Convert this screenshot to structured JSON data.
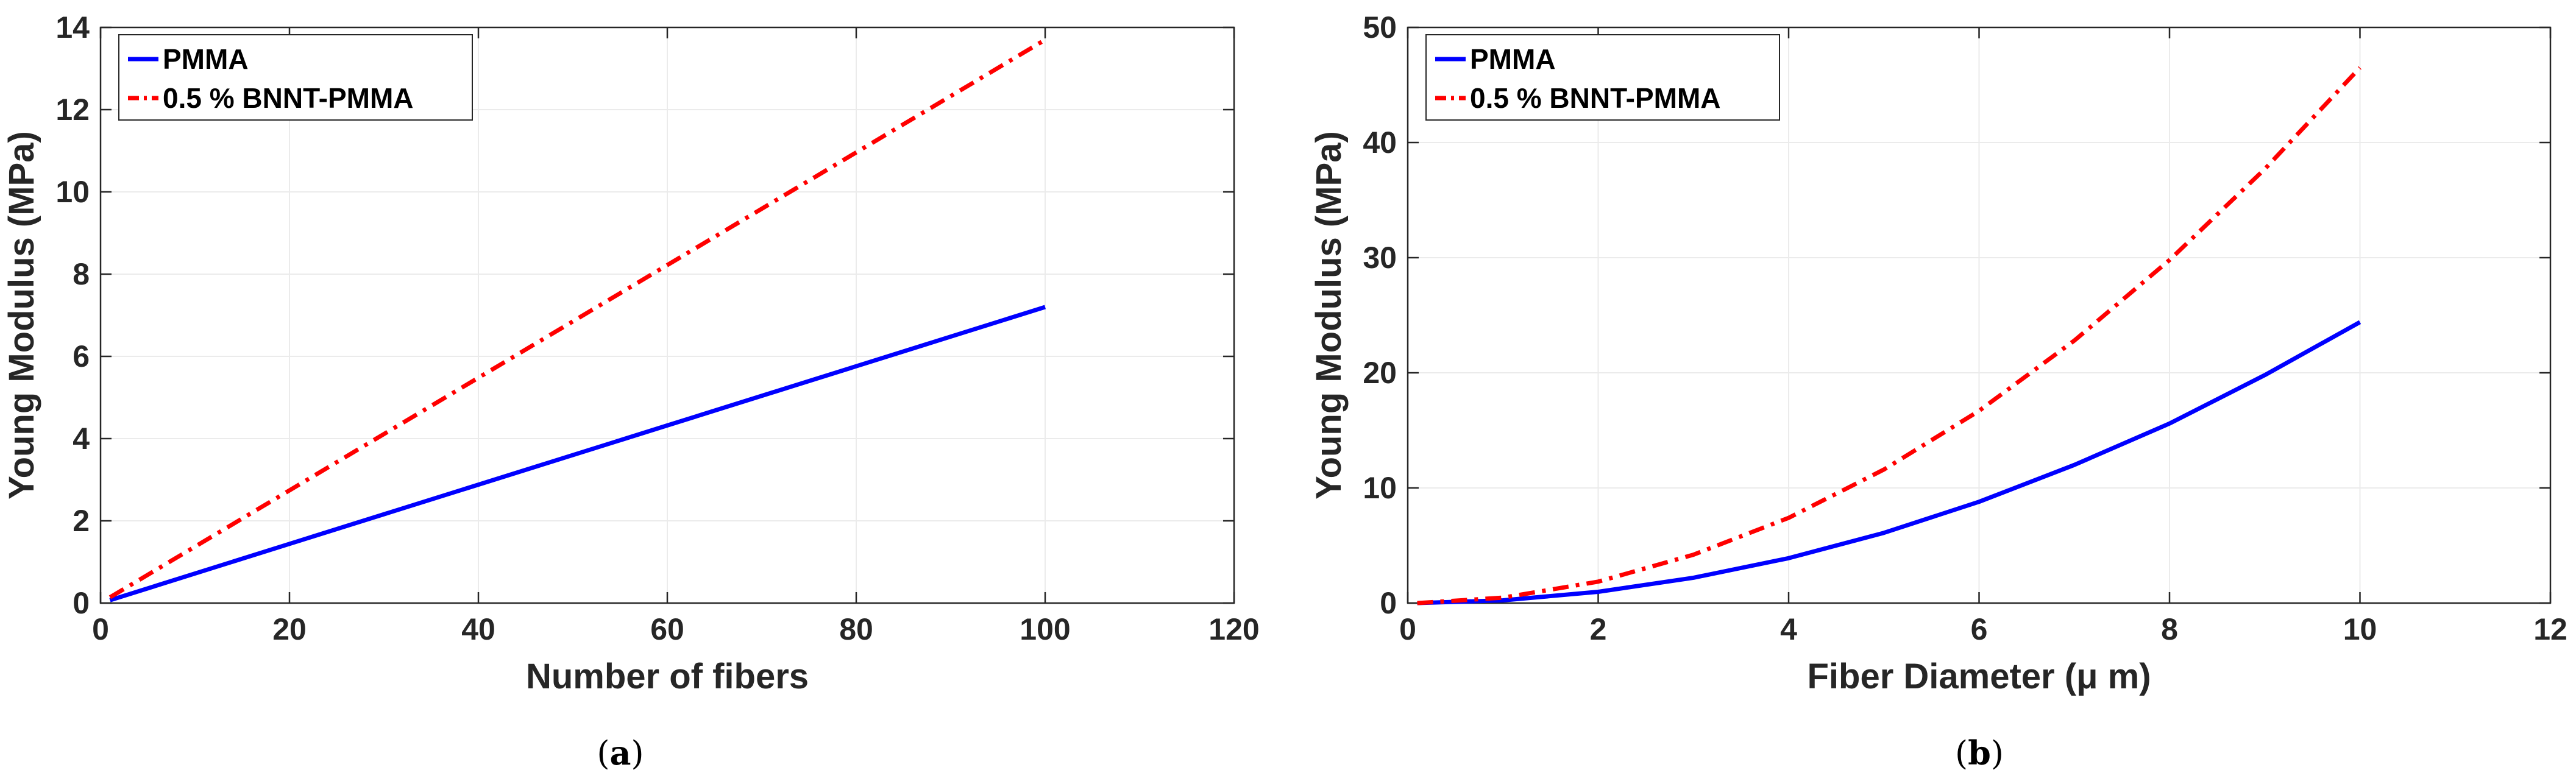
{
  "chart_data": [
    {
      "type": "line",
      "caption": "a",
      "xlabel": "Number of fibers",
      "ylabel": "Young Modulus (MPa)",
      "xlim": [
        0,
        120
      ],
      "ylim": [
        0,
        14
      ],
      "xticks": [
        0,
        20,
        40,
        60,
        80,
        100,
        120
      ],
      "yticks": [
        0,
        2,
        4,
        6,
        8,
        10,
        12,
        14
      ],
      "grid": true,
      "legend_position": "top-left",
      "series": [
        {
          "name": "PMMA",
          "color": "#0000ff",
          "style": "solid",
          "x": [
            1,
            20,
            40,
            60,
            80,
            100
          ],
          "y": [
            0.07,
            1.44,
            2.88,
            4.32,
            5.76,
            7.2
          ]
        },
        {
          "name": "0.5 % BNNT-PMMA",
          "color": "#ff0000",
          "style": "dashdot",
          "x": [
            1,
            20,
            40,
            60,
            80,
            100
          ],
          "y": [
            0.14,
            2.74,
            5.48,
            8.22,
            10.96,
            13.7
          ]
        }
      ]
    },
    {
      "type": "line",
      "caption": "b",
      "xlabel": "Fiber Diameter (μ m)",
      "ylabel": "Young Modulus (MPa)",
      "xlim": [
        0,
        12
      ],
      "ylim": [
        0,
        50
      ],
      "xticks": [
        0,
        2,
        4,
        6,
        8,
        10,
        12
      ],
      "yticks": [
        0,
        10,
        20,
        30,
        40,
        50
      ],
      "grid": true,
      "legend_position": "top-left",
      "series": [
        {
          "name": "PMMA",
          "color": "#0000ff",
          "style": "solid",
          "x": [
            0.1,
            1,
            2,
            3,
            4,
            5,
            6,
            7,
            8,
            9,
            10
          ],
          "y": [
            0.0,
            0.24,
            0.98,
            2.2,
            3.9,
            6.1,
            8.8,
            12.0,
            15.6,
            19.8,
            24.4
          ]
        },
        {
          "name": "0.5 % BNNT-PMMA",
          "color": "#ff0000",
          "style": "dashdot",
          "x": [
            0.1,
            1,
            2,
            3,
            4,
            5,
            6,
            7,
            8,
            9,
            10
          ],
          "y": [
            0.0,
            0.47,
            1.86,
            4.2,
            7.4,
            11.6,
            16.7,
            22.8,
            29.8,
            37.7,
            46.5
          ]
        }
      ]
    }
  ]
}
